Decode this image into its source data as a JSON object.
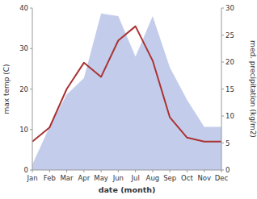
{
  "chart_data": {
    "type": "line",
    "categories": [
      "Jan",
      "Feb",
      "Mar",
      "Apr",
      "May",
      "Jun",
      "Jul",
      "Aug",
      "Sep",
      "Oct",
      "Nov",
      "Dec"
    ],
    "xlabel": "date (month)",
    "ylabel": "max temp (C)",
    "y2label": "med. precipitation (kg/m2)",
    "ylim": [
      0,
      40
    ],
    "yticks": [
      0,
      10,
      20,
      30,
      40
    ],
    "y2lim": [
      0,
      30
    ],
    "y2ticks": [
      0,
      5,
      10,
      15,
      20,
      25,
      30
    ],
    "grid": false,
    "series": [
      {
        "type": "area",
        "axis": "y2",
        "color": "#b8c4e8",
        "values": [
          1.0,
          8.0,
          14.0,
          17.0,
          29.0,
          28.5,
          21.0,
          28.5,
          19.0,
          13.0,
          8.0,
          8.0
        ]
      },
      {
        "type": "line",
        "color": "#aa3333",
        "values": [
          7.0,
          10.5,
          20.0,
          26.5,
          23.0,
          32.0,
          35.5,
          27.0,
          13.0,
          8.0,
          7.0,
          7.0
        ]
      }
    ]
  }
}
